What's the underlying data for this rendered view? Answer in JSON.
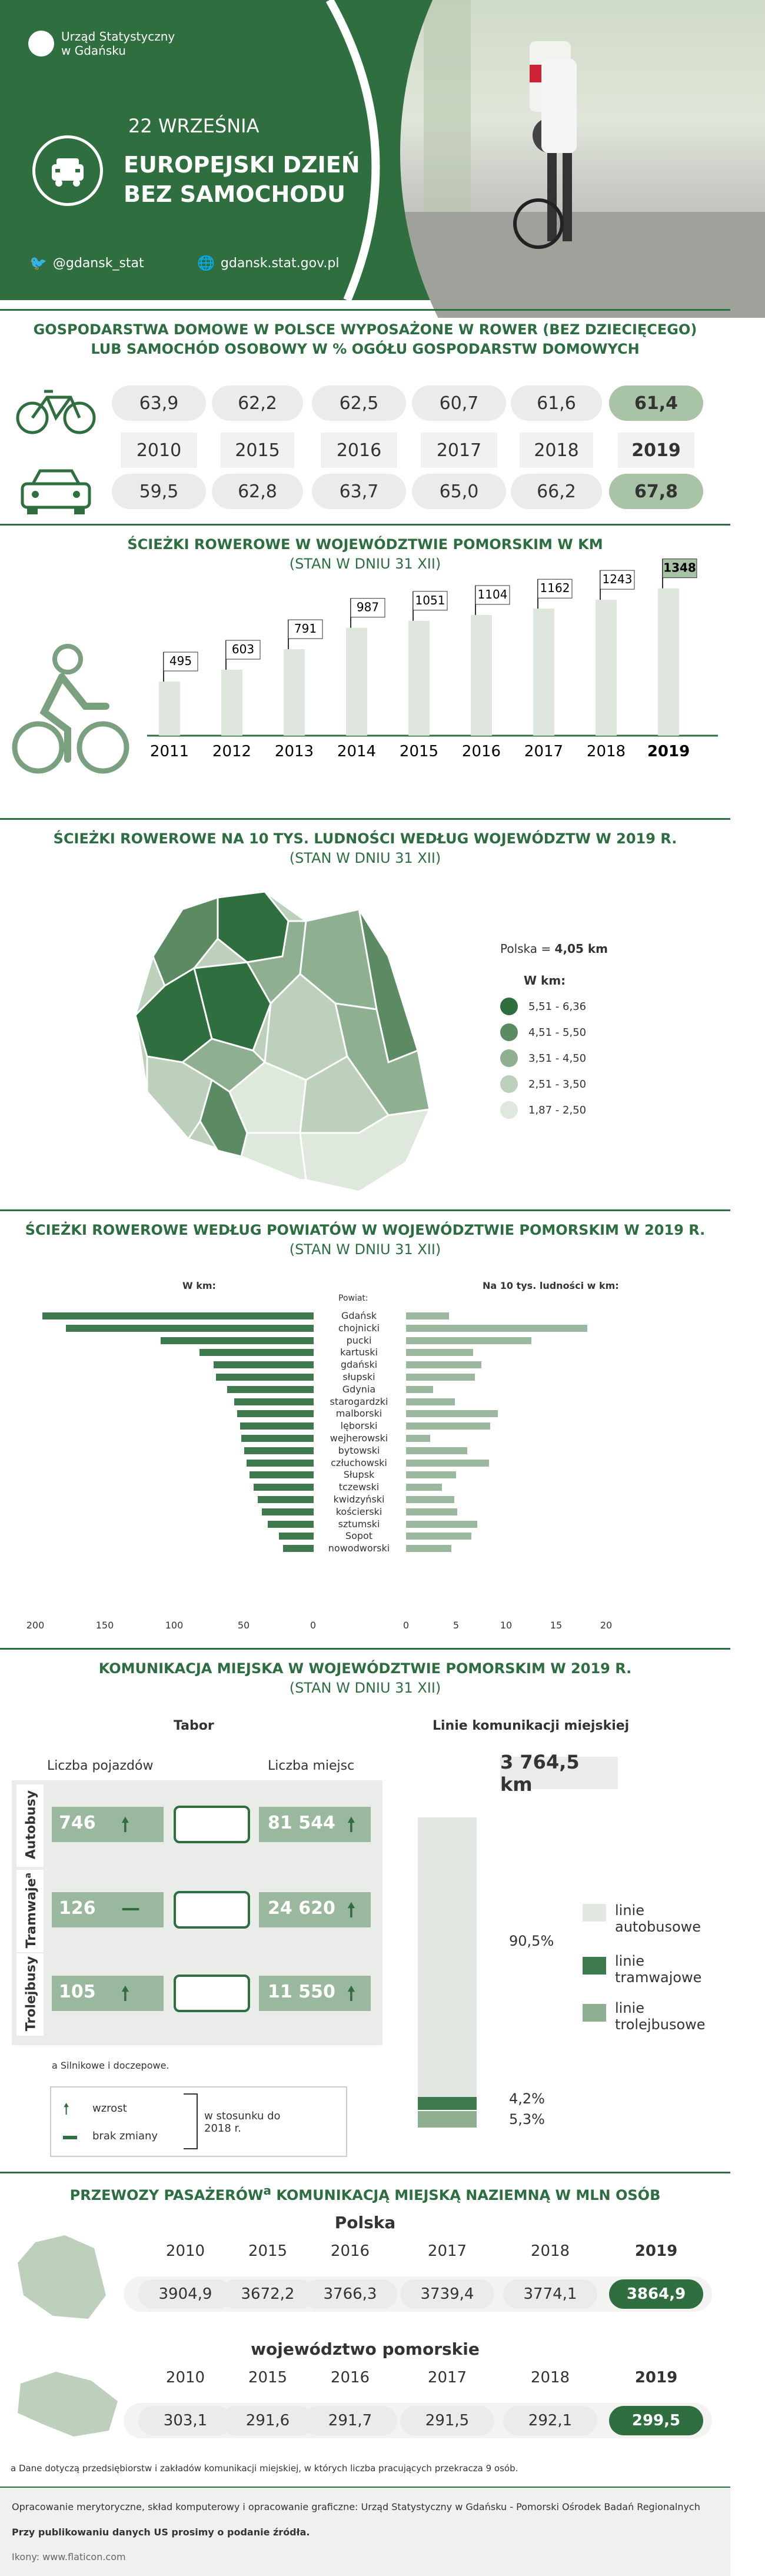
{
  "header": {
    "logo_line1": "Urząd Statystyczny",
    "logo_line2": "w Gdańsku",
    "date": "22 WRZEŚNIA",
    "title1": "EUROPEJSKI DZIEŃ",
    "title2": "BEZ SAMOCHODU",
    "twitter": "@gdansk_stat",
    "web": "gdansk.stat.gov.pl"
  },
  "households": {
    "title1": "GOSPODARSTWA DOMOWE W POLSCE WYPOSAŻONE W ROWER (BEZ DZIECIĘCEGO)",
    "title2": "LUB SAMOCHÓD OSOBOWY W % OGÓŁU GOSPODARSTW DOMOWYCH",
    "years": [
      "2010",
      "2015",
      "2016",
      "2017",
      "2018",
      "2019"
    ],
    "bike": [
      "63,9",
      "62,2",
      "62,5",
      "60,7",
      "61,6",
      "61,4"
    ],
    "car": [
      "59,5",
      "62,8",
      "63,7",
      "65,0",
      "66,2",
      "67,8"
    ]
  },
  "paths": {
    "title": "ŚCIEŻKI ROWEROWE W WOJEWÓDZTWIE POMORSKIM W KM",
    "subtitle": "(STAN W DNIU 31 XII)"
  },
  "chart_data": [
    {
      "type": "bar",
      "title": "ŚCIEŻKI ROWEROWE W WOJEWÓDZTWIE POMORSKIM W KM",
      "categories": [
        "2011",
        "2012",
        "2013",
        "2014",
        "2015",
        "2016",
        "2017",
        "2018",
        "2019"
      ],
      "values": [
        495,
        603,
        791,
        987,
        1051,
        1104,
        1162,
        1243,
        1348
      ]
    },
    {
      "type": "bar",
      "title": "ŚCIEŻKI ROWEROWE WEDŁUG POWIATÓW W WOJEWÓDZTWIE POMORSKIM W 2019 R.",
      "categories": [
        "Gdańsk",
        "chojnicki",
        "pucki",
        "kartuski",
        "gdański",
        "słupski",
        "Gdynia",
        "starogardzki",
        "malborski",
        "lęborski",
        "wejherowski",
        "bytowski",
        "człuchowski",
        "Słupsk",
        "tczewski",
        "kwidzyński",
        "kościerski",
        "sztumski",
        "Sopot",
        "nowodworski"
      ],
      "series": [
        {
          "name": "W km:",
          "values": [
            195,
            178,
            110,
            82,
            72,
            70,
            62,
            57,
            55,
            53,
            52,
            50,
            48,
            46,
            43,
            40,
            37,
            33,
            25,
            22
          ]
        },
        {
          "name": "Na 10 tys. ludności w km:",
          "values": [
            4.3,
            18.1,
            12.5,
            6.7,
            7.5,
            6.9,
            2.7,
            4.9,
            9.2,
            8.4,
            2.4,
            6.1,
            8.3,
            5.0,
            3.6,
            4.8,
            5.1,
            7.1,
            6.5,
            4.5
          ]
        }
      ],
      "xlim_left": [
        200,
        0
      ],
      "xlim_right": [
        0,
        20
      ]
    }
  ],
  "map": {
    "title": "ŚCIEŻKI ROWEROWE NA 10 TYS. LUDNOŚCI WEDŁUG WOJEWÓDZTW W 2019 R.",
    "subtitle": "(STAN W DNIU 31 XII)",
    "polska_label": "Polska = ",
    "polska_val": "4,05 km",
    "legend_title": "W km:",
    "legend": [
      {
        "label": "5,51 - 6,36",
        "color": "#2f6e3f"
      },
      {
        "label": "4,51 - 5,50",
        "color": "#5c8a63"
      },
      {
        "label": "3,51 - 4,50",
        "color": "#8faf91"
      },
      {
        "label": "2,51 - 3,50",
        "color": "#bcd0bc"
      },
      {
        "label": "1,87 - 2,50",
        "color": "#dfe8dd"
      }
    ]
  },
  "powiaty": {
    "title": "ŚCIEŻKI ROWEROWE WEDŁUG POWIATÓW W WOJEWÓDZTWIE POMORSKIM W 2019 R.",
    "subtitle": "(STAN W DNIU 31 XII)",
    "left_head": "W km:",
    "mid_head": "Powiat:",
    "right_head": "Na 10 tys. ludności w km:",
    "left_ticks": [
      "200",
      "150",
      "100",
      "50",
      "0"
    ],
    "right_ticks": [
      "0",
      "5",
      "10",
      "15",
      "20"
    ]
  },
  "transport": {
    "title": "KOMUNIKACJA MIEJSKA  W WOJEWÓDZTWIE POMORSKIM W 2019 R.",
    "subtitle": "(STAN W DNIU 31 XII)",
    "tabor": "Tabor",
    "lines_title": "Linie komunikacji miejskiej",
    "col1": "Liczba pojazdów",
    "col2": "Liczba miejsc",
    "rows": [
      {
        "name": "Autobusy",
        "veh": "746",
        "seats": "81 544"
      },
      {
        "name": "Tramwaje",
        "sup": "a",
        "veh": "126",
        "seats": "24 620"
      },
      {
        "name": "Trolejbusy",
        "veh": "105",
        "seats": "11 550"
      }
    ],
    "note": "a Silnikowe i doczepowe.",
    "total": "3 764,5 km",
    "pct_bus": "90,5%",
    "pct_tram": "4,2%",
    "pct_trol": "5,3%",
    "lg_bus": "linie autobusowe",
    "lg_tram": "linie tramwajowe",
    "lg_trol": "linie trolejbusowe",
    "up": "wzrost",
    "flat": "brak zmiany",
    "vs": "w stosunku do 2018 r."
  },
  "passengers": {
    "title": "PRZEWOZY PASAŻERÓW",
    "title_sup": "a",
    "title2": " KOMUNIKACJĄ MIEJSKĄ NAZIEMNĄ W MLN OSÓB",
    "polska": "Polska",
    "pomorskie": "województwo pomorskie",
    "years": [
      "2010",
      "2015",
      "2016",
      "2017",
      "2018",
      "2019"
    ],
    "pl": [
      "3904,9",
      "3672,2",
      "3766,3",
      "3739,4",
      "3774,1",
      "3864,9"
    ],
    "pm": [
      "303,1",
      "291,6",
      "291,7",
      "291,5",
      "292,1",
      "299,5"
    ],
    "note": "a Dane dotyczą przedsiębiorstw i zakładów komunikacji miejskiej, w których liczba pracujących przekracza 9 osób."
  },
  "footer": {
    "line1": "Opracowanie merytoryczne, skład komputerowy i opracowanie graficzne: Urząd Statystyczny w Gdańsku - Pomorski Ośrodek Badań Regionalnych",
    "line2": "Przy publikowaniu danych US prosimy o podanie źródła.",
    "line3": "Ikony: www.flaticon.com"
  },
  "colors": {
    "brand": "#2f6e3f",
    "light": "#e9ece8"
  },
  "icons": [
    "bicycle-icon",
    "car-icon",
    "twitter-icon",
    "globe-icon",
    "bus-icon",
    "tram-icon",
    "trolleybus-icon",
    "arrow-up-icon",
    "map-poland",
    "map-pomorskie"
  ]
}
